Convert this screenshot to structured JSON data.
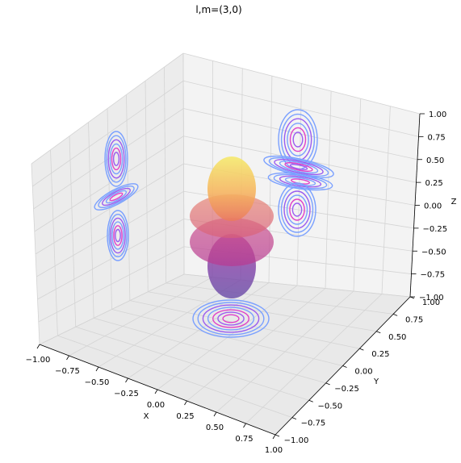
{
  "chart_data": {
    "type": "surface3d",
    "title": "l,m=(3,0)",
    "xlabel": "X",
    "ylabel": "Y",
    "zlabel": "Z",
    "xlim": [
      -1.0,
      1.0
    ],
    "ylim": [
      -1.0,
      1.0
    ],
    "zlim": [
      -1.0,
      1.0
    ],
    "x_ticks": [
      "−1.00",
      "−0.75",
      "−0.50",
      "−0.25",
      "0.00",
      "0.25",
      "0.50",
      "0.75",
      "1.00"
    ],
    "y_ticks": [
      "−1.00",
      "−0.75",
      "−0.50",
      "−0.25",
      "0.00",
      "0.25",
      "0.50",
      "0.75",
      "1.00"
    ],
    "z_ticks": [
      "−1.00",
      "−0.75",
      "−0.50",
      "−0.25",
      "0.00",
      "0.25",
      "0.50",
      "0.75",
      "1.00"
    ],
    "grid": true,
    "surface": {
      "function": "real spherical harmonic Y(l=3, m=0)",
      "l": 3,
      "m": 0,
      "colormap": "plasma"
    },
    "contour_projections": [
      "x-wall",
      "y-wall",
      "z-floor"
    ],
    "colors": {
      "contour_outer": "#7aa0ff",
      "contour_mid": "#9a5cf0",
      "contour_inner": "#e040c8",
      "pane": "#f2f2f2",
      "grid": "#d4d4d4"
    }
  }
}
